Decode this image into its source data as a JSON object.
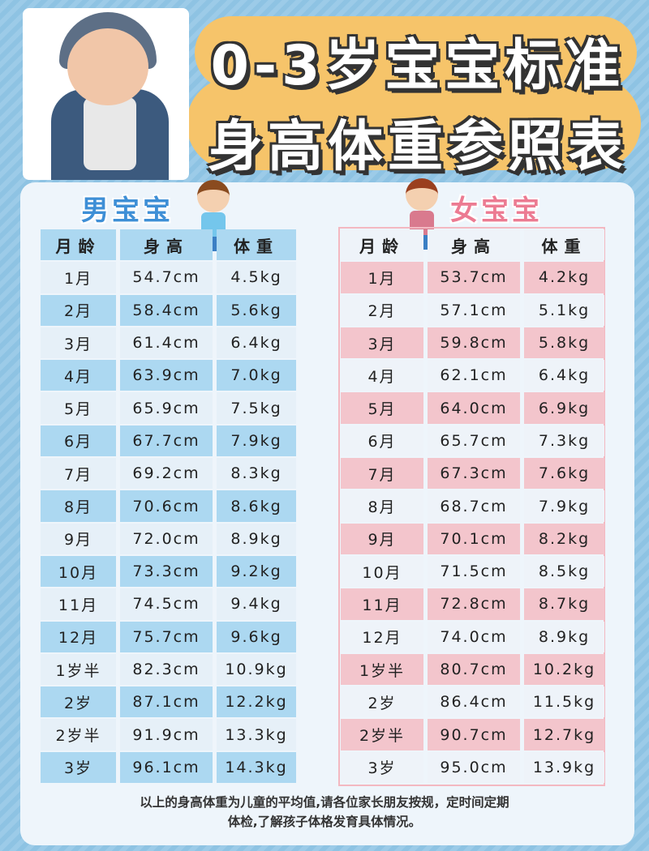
{
  "title": {
    "line1": "0-3岁宝宝标准",
    "line2": "身高体重参照表"
  },
  "colors": {
    "boy_accent": "#3e8fd6",
    "girl_accent": "#ec7b92",
    "boy_row": "#acd8f1",
    "girl_row": "#f3c5cc",
    "header_cloud": "#f6c46a"
  },
  "boy": {
    "label": "男宝宝",
    "headers": [
      "月龄",
      "身高",
      "体重"
    ],
    "rows": [
      [
        "1月",
        "54.7cm",
        "4.5kg"
      ],
      [
        "2月",
        "58.4cm",
        "5.6kg"
      ],
      [
        "3月",
        "61.4cm",
        "6.4kg"
      ],
      [
        "4月",
        "63.9cm",
        "7.0kg"
      ],
      [
        "5月",
        "65.9cm",
        "7.5kg"
      ],
      [
        "6月",
        "67.7cm",
        "7.9kg"
      ],
      [
        "7月",
        "69.2cm",
        "8.3kg"
      ],
      [
        "8月",
        "70.6cm",
        "8.6kg"
      ],
      [
        "9月",
        "72.0cm",
        "8.9kg"
      ],
      [
        "10月",
        "73.3cm",
        "9.2kg"
      ],
      [
        "11月",
        "74.5cm",
        "9.4kg"
      ],
      [
        "12月",
        "75.7cm",
        "9.6kg"
      ],
      [
        "1岁半",
        "82.3cm",
        "10.9kg"
      ],
      [
        "2岁",
        "87.1cm",
        "12.2kg"
      ],
      [
        "2岁半",
        "91.9cm",
        "13.3kg"
      ],
      [
        "3岁",
        "96.1cm",
        "14.3kg"
      ]
    ]
  },
  "girl": {
    "label": "女宝宝",
    "headers": [
      "月龄",
      "身高",
      "体重"
    ],
    "rows": [
      [
        "1月",
        "53.7cm",
        "4.2kg"
      ],
      [
        "2月",
        "57.1cm",
        "5.1kg"
      ],
      [
        "3月",
        "59.8cm",
        "5.8kg"
      ],
      [
        "4月",
        "62.1cm",
        "6.4kg"
      ],
      [
        "5月",
        "64.0cm",
        "6.9kg"
      ],
      [
        "6月",
        "65.7cm",
        "7.3kg"
      ],
      [
        "7月",
        "67.3cm",
        "7.6kg"
      ],
      [
        "8月",
        "68.7cm",
        "7.9kg"
      ],
      [
        "9月",
        "70.1cm",
        "8.2kg"
      ],
      [
        "10月",
        "71.5cm",
        "8.5kg"
      ],
      [
        "11月",
        "72.8cm",
        "8.7kg"
      ],
      [
        "12月",
        "74.0cm",
        "8.9kg"
      ],
      [
        "1岁半",
        "80.7cm",
        "10.2kg"
      ],
      [
        "2岁",
        "86.4cm",
        "11.5kg"
      ],
      [
        "2岁半",
        "90.7cm",
        "12.7kg"
      ],
      [
        "3岁",
        "95.0cm",
        "13.9kg"
      ]
    ]
  },
  "footer": {
    "line1": "以上的身高体重为儿童的平均值,请各位家长朋友按规，定时间定期",
    "line2": "体检,了解孩子体格发育具体情况。"
  }
}
